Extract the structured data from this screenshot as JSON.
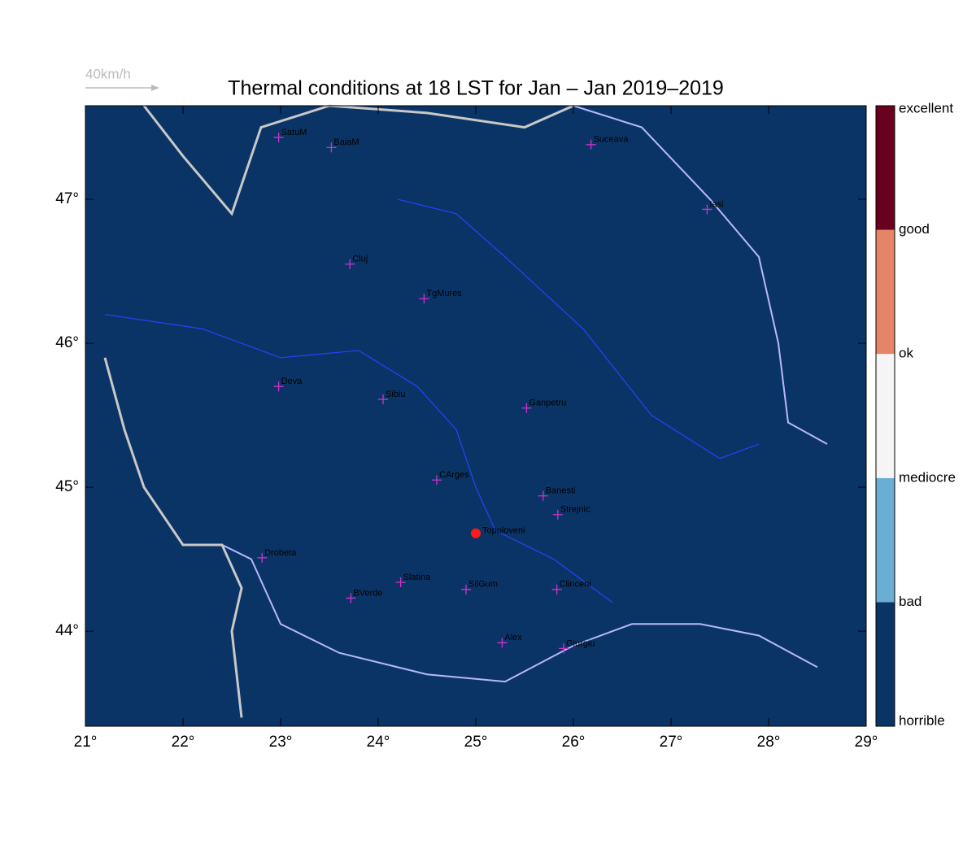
{
  "chart_data": {
    "type": "map",
    "title": "Thermal conditions at 18 LST for Jan – Jan  2019–2019",
    "reference_vector": "40km/h",
    "xlim": [
      21,
      29
    ],
    "ylim": [
      43.34,
      47.65
    ],
    "xticks": [
      {
        "value": 21,
        "label": "21°"
      },
      {
        "value": 22,
        "label": "22°"
      },
      {
        "value": 23,
        "label": "23°"
      },
      {
        "value": 24,
        "label": "24°"
      },
      {
        "value": 25,
        "label": "25°"
      },
      {
        "value": 26,
        "label": "26°"
      },
      {
        "value": 27,
        "label": "27°"
      },
      {
        "value": 28,
        "label": "28°"
      },
      {
        "value": 29,
        "label": "29°"
      }
    ],
    "yticks": [
      {
        "value": 44,
        "label": "44°"
      },
      {
        "value": 45,
        "label": "45°"
      },
      {
        "value": 46,
        "label": "46°"
      },
      {
        "value": 47,
        "label": "47°"
      }
    ],
    "background_color": "#0b3466",
    "colorbar": {
      "labels": [
        "horrible",
        "bad",
        "mediocre",
        "ok",
        "good",
        "excellent"
      ],
      "colors": [
        "#0b3466",
        "#6aaed3",
        "#f5f5f5",
        "#e58565",
        "#690020"
      ]
    },
    "stations": {
      "names": [
        "SatuM",
        "BaiaM",
        "Suceava",
        "Iasi",
        "Cluj",
        "TgMures",
        "Deva",
        "Sibiu",
        "Ganpetru",
        "CArges",
        "Banesti",
        "Strejnic",
        "Drobeta",
        "Slatina",
        "SilGum",
        "Clinceni",
        "BVerde",
        "Alex",
        "Giurgiu"
      ],
      "lon": [
        22.98,
        23.52,
        26.18,
        27.37,
        23.71,
        24.47,
        22.98,
        24.05,
        25.52,
        24.6,
        25.69,
        25.84,
        22.81,
        24.23,
        24.9,
        25.83,
        23.72,
        25.27,
        25.9
      ],
      "lat": [
        47.43,
        47.36,
        47.38,
        46.93,
        46.55,
        46.31,
        45.7,
        45.61,
        45.55,
        45.05,
        44.94,
        44.81,
        44.51,
        44.34,
        44.29,
        44.29,
        44.23,
        43.92,
        43.88
      ],
      "color": "#cc33cc"
    },
    "highlight": {
      "name": "Topoloveni",
      "lon": 25.0,
      "lat": 44.68,
      "color": "#ff1a1a"
    }
  }
}
